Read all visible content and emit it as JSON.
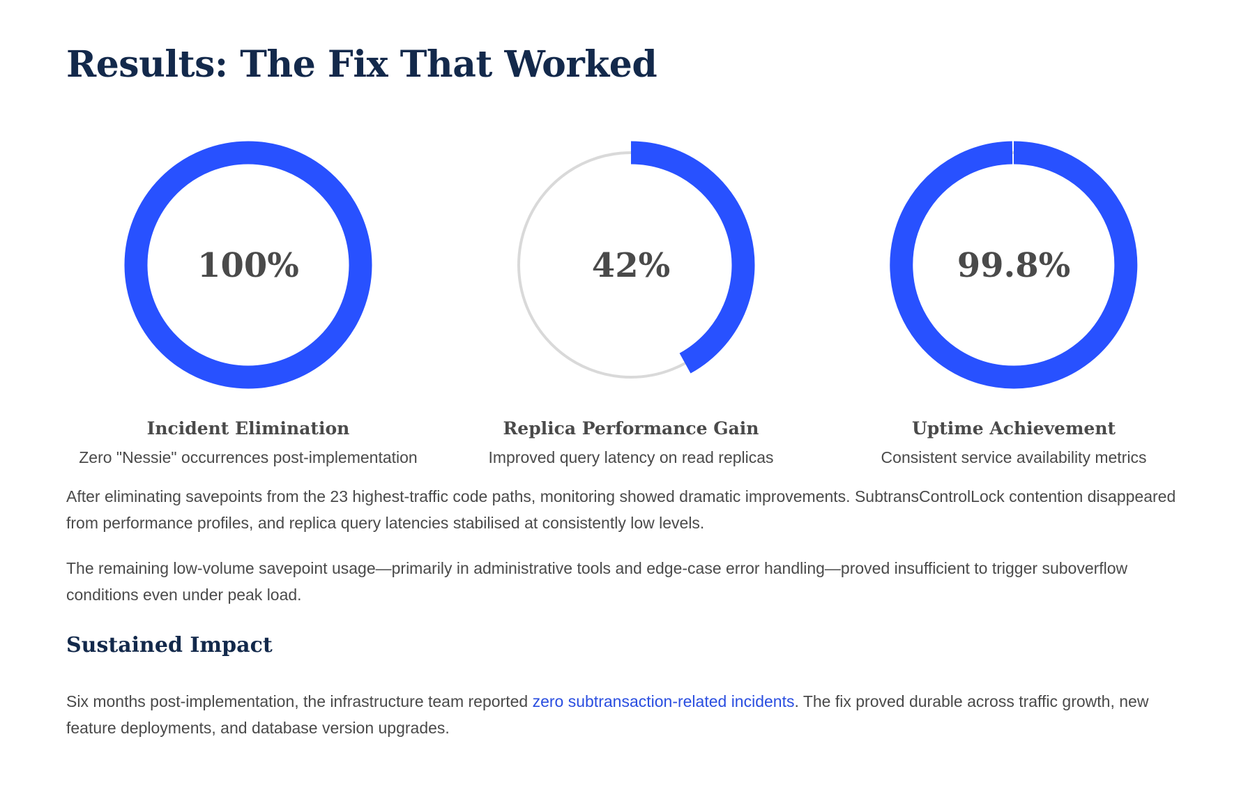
{
  "heading": "Results: The Fix That Worked",
  "metrics": [
    {
      "value_text": "100%",
      "fraction": 1.0,
      "label": "Incident Elimination",
      "description": "Zero \"Nessie\" occurrences post-implementation"
    },
    {
      "value_text": "42%",
      "fraction": 0.42,
      "label": "Replica Performance Gain",
      "description": "Improved query latency on read replicas"
    },
    {
      "value_text": "99.8%",
      "fraction": 0.998,
      "label": "Uptime Achievement",
      "description": "Consistent service availability metrics"
    }
  ],
  "paragraphs": [
    "After eliminating savepoints from the 23 highest-traffic code paths, monitoring showed dramatic improvements. SubtransControlLock contention disappeared from performance profiles, and replica query latencies stabilised at consistently low levels.",
    "The remaining low-volume savepoint usage—primarily in administrative tools and edge-case error handling—proved insufficient to trigger suboverflow conditions even under peak load."
  ],
  "sustained": {
    "heading": "Sustained Impact",
    "text_before": "Six months post-implementation, the infrastructure team reported ",
    "link_text": "zero subtransaction-related incidents",
    "text_after": ". The fix proved durable across traffic growth, new feature deployments, and database version upgrades."
  },
  "colors": {
    "accent": "#2851ff",
    "track": "#d9d9d9",
    "heading": "#13294b",
    "body": "#4a4a4a",
    "link": "#2a4ee0"
  }
}
